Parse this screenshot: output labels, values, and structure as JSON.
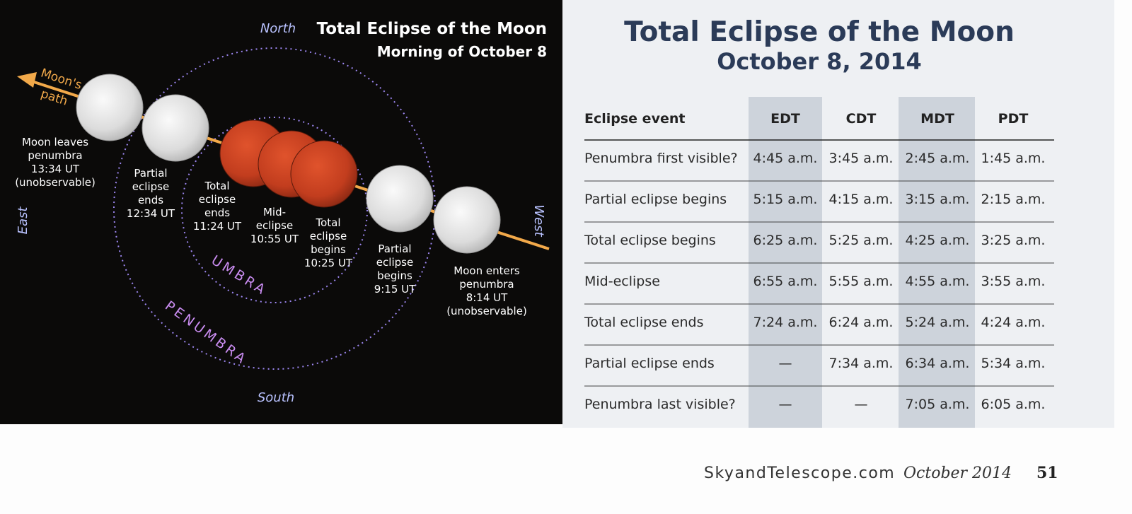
{
  "diagram": {
    "title": "Total Eclipse of the Moon",
    "subtitle": "Morning of October 8",
    "north": "North",
    "south": "South",
    "east": "East",
    "west": "West",
    "path_label": [
      "Moon's",
      "path"
    ],
    "umbra": "UMBRA",
    "penumbra": "PENUMBRA",
    "moon_labels": [
      [
        "Moon leaves",
        "penumbra",
        "13:34 UT",
        "(unobservable)"
      ],
      [
        "Partial",
        "eclipse",
        "ends",
        "12:34 UT"
      ],
      [
        "Total",
        "eclipse",
        "ends",
        "11:24 UT"
      ],
      [
        "Mid-",
        "eclipse",
        "10:55 UT"
      ],
      [
        "Total",
        "eclipse",
        "begins",
        "10:25 UT"
      ],
      [
        "Partial",
        "eclipse",
        "begins",
        "9:15 UT"
      ],
      [
        "Moon enters",
        "penumbra",
        "8:14 UT",
        "(unobservable)"
      ]
    ]
  },
  "table": {
    "title": "Total Eclipse of the Moon",
    "subtitle": "October 8, 2014",
    "headers": [
      "Eclipse event",
      "EDT",
      "CDT",
      "MDT",
      "PDT"
    ],
    "rows": [
      [
        "Penumbra first visible?",
        "4:45 a.m.",
        "3:45 a.m.",
        "2:45 a.m.",
        "1:45 a.m."
      ],
      [
        "Partial eclipse begins",
        "5:15 a.m.",
        "4:15 a.m.",
        "3:15 a.m.",
        "2:15 a.m."
      ],
      [
        "Total eclipse begins",
        "6:25 a.m.",
        "5:25 a.m.",
        "4:25 a.m.",
        "3:25 a.m."
      ],
      [
        "Mid-eclipse",
        "6:55 a.m.",
        "5:55 a.m.",
        "4:55 a.m.",
        "3:55 a.m."
      ],
      [
        "Total eclipse ends",
        "7:24 a.m.",
        "6:24 a.m.",
        "5:24 a.m.",
        "4:24 a.m."
      ],
      [
        "Partial eclipse ends",
        "—",
        "7:34 a.m.",
        "6:34 a.m.",
        "5:34 a.m."
      ],
      [
        "Penumbra last visible?",
        "—",
        "—",
        "7:05 a.m.",
        "6:05 a.m."
      ]
    ]
  },
  "footer": {
    "site": "SkyandTelescope.com",
    "issue": "October 2014",
    "page": "51"
  }
}
